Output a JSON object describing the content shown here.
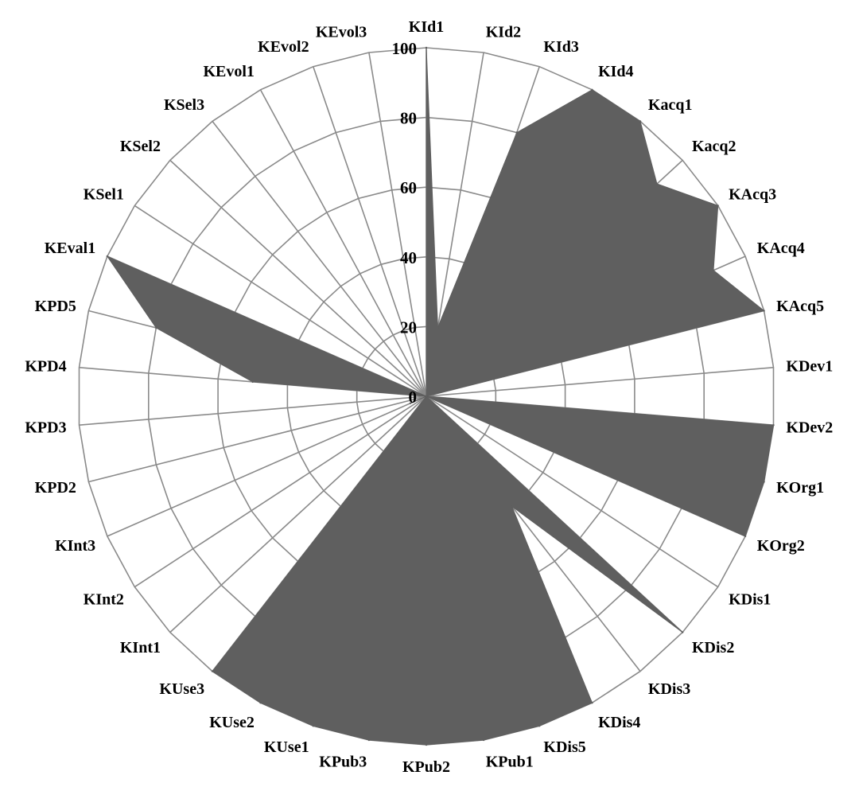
{
  "chart_data": {
    "type": "radar",
    "title": "",
    "categories": [
      "KId1",
      "KId2",
      "KId3",
      "KId4",
      "Kacq1",
      "Kacq2",
      "KAcq3",
      "KAcq4",
      "KAcq5",
      "KDev1",
      "KDev2",
      "KOrg1",
      "KOrg2",
      "KDis1",
      "KDis2",
      "KDis3",
      "KDis4",
      "KDis5",
      "KPub1",
      "KPub2",
      "KPub3",
      "KUse1",
      "KUse2",
      "KUse3",
      "KInt1",
      "KInt2",
      "KInt3",
      "KPD2",
      "KPD3",
      "KPD4",
      "KPD5",
      "KEval1",
      "KSel1",
      "KSel2",
      "KSel3",
      "KEvol1",
      "KEvol2",
      "KEvol3"
    ],
    "series": [
      {
        "values": [
          100,
          20,
          80,
          100,
          100,
          90,
          100,
          90,
          100,
          0,
          100,
          100,
          100,
          0,
          100,
          40,
          100,
          100,
          100,
          100,
          100,
          100,
          100,
          100,
          0,
          0,
          5,
          0,
          0,
          50,
          80,
          100,
          0,
          0,
          0,
          0,
          0,
          0
        ]
      }
    ],
    "r_ticks": [
      "0",
      "20",
      "40",
      "60",
      "80",
      "100"
    ],
    "rlim": [
      0,
      100
    ],
    "grid": true,
    "legend": "none",
    "colors": {
      "fill": "#5f5f5f",
      "grid": "#8a8a8a",
      "text": "#000000"
    }
  }
}
